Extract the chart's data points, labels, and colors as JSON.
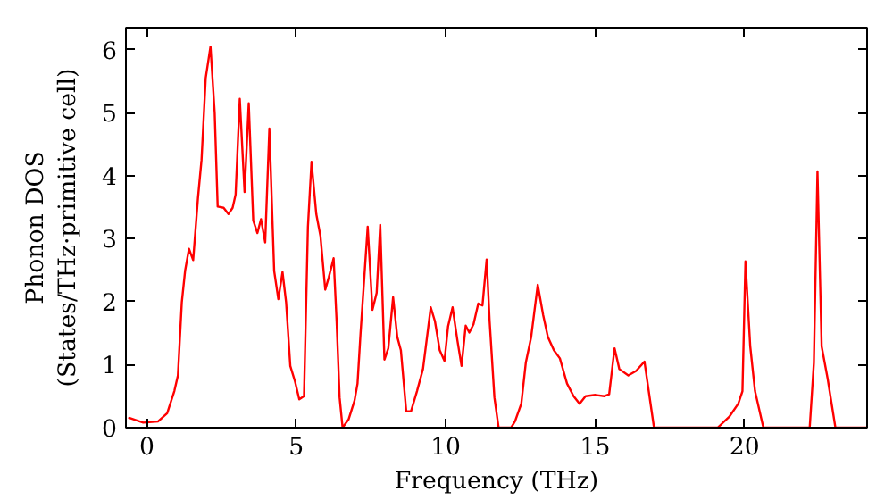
{
  "chart_data": {
    "type": "line",
    "xlabel": "Frequency (THz)",
    "ylabel": "Phonon DOS\n(States/THz·primitive cell)",
    "xlim": [
      -0.7,
      24.1
    ],
    "ylim": [
      0,
      6.35
    ],
    "xticks": [
      0,
      5,
      10,
      15,
      20
    ],
    "yticks": [
      0,
      1,
      2,
      3,
      4,
      5,
      6
    ],
    "grid": false,
    "series": [
      {
        "color": "#ff0000",
        "x": [
          -0.62,
          -0.12,
          0.38,
          0.68,
          0.92,
          1.04,
          1.17,
          1.28,
          1.41,
          1.55,
          1.71,
          1.83,
          1.97,
          2.13,
          2.27,
          2.37,
          2.57,
          2.73,
          2.87,
          2.97,
          3.11,
          3.27,
          3.41,
          3.56,
          3.7,
          3.82,
          3.96,
          4.1,
          4.26,
          4.4,
          4.54,
          4.66,
          4.8,
          4.96,
          5.1,
          5.26,
          5.39,
          5.51,
          5.67,
          5.81,
          5.97,
          6.09,
          6.25,
          6.35,
          6.45,
          6.55,
          6.75,
          6.95,
          7.05,
          7.15,
          7.39,
          7.55,
          7.69,
          7.81,
          7.95,
          8.08,
          8.24,
          8.38,
          8.5,
          8.68,
          8.84,
          9.04,
          9.24,
          9.5,
          9.64,
          9.8,
          9.96,
          10.08,
          10.23,
          10.39,
          10.53,
          10.67,
          10.79,
          10.93,
          11.09,
          11.23,
          11.37,
          11.47,
          11.63,
          11.77,
          12.19,
          12.32,
          12.53,
          12.68,
          12.86,
          13.08,
          13.26,
          13.42,
          13.62,
          13.82,
          14.06,
          14.28,
          14.48,
          14.68,
          15.01,
          15.31,
          15.47,
          15.65,
          15.81,
          16.11,
          16.37,
          16.65,
          16.97,
          19.1,
          19.5,
          19.79,
          19.93,
          20.03,
          20.19,
          20.35,
          20.63,
          22.18,
          22.32,
          22.44,
          22.58,
          22.78,
          23.04,
          24.07
        ],
        "values": [
          0.16,
          0.08,
          0.1,
          0.23,
          0.58,
          0.83,
          1.99,
          2.49,
          2.84,
          2.66,
          3.64,
          4.25,
          5.55,
          6.05,
          5.0,
          3.51,
          3.49,
          3.39,
          3.49,
          3.7,
          5.22,
          3.74,
          5.15,
          3.29,
          3.09,
          3.31,
          2.94,
          4.75,
          2.49,
          2.04,
          2.47,
          1.99,
          0.98,
          0.73,
          0.45,
          0.5,
          3.19,
          4.22,
          3.39,
          3.04,
          2.19,
          2.39,
          2.69,
          1.69,
          0.48,
          0,
          0.13,
          0.43,
          0.7,
          1.49,
          3.19,
          1.87,
          2.14,
          3.22,
          1.08,
          1.26,
          2.07,
          1.44,
          1.23,
          0.26,
          0.26,
          0.58,
          0.93,
          1.91,
          1.69,
          1.23,
          1.06,
          1.61,
          1.91,
          1.39,
          0.98,
          1.62,
          1.51,
          1.64,
          1.97,
          1.94,
          2.67,
          1.69,
          0.48,
          0,
          0,
          0.1,
          0.38,
          1.03,
          1.44,
          2.27,
          1.79,
          1.44,
          1.23,
          1.1,
          0.7,
          0.5,
          0.38,
          0.5,
          0.52,
          0.5,
          0.53,
          1.26,
          0.93,
          0.83,
          0.9,
          1.05,
          0,
          0,
          0.18,
          0.38,
          0.58,
          2.64,
          1.29,
          0.58,
          0,
          0,
          1.03,
          4.07,
          1.29,
          0.78,
          0,
          0
        ]
      }
    ]
  }
}
